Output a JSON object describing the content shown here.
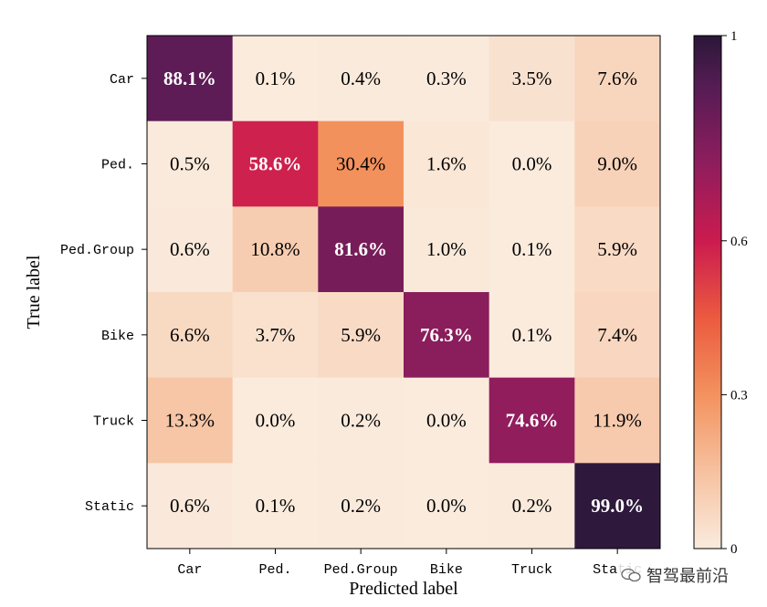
{
  "chart_data": {
    "type": "heatmap",
    "xlabel": "Predicted label",
    "ylabel": "True label",
    "row_labels": [
      "Car",
      "Ped.",
      "Ped.Group",
      "Bike",
      "Truck",
      "Static"
    ],
    "col_labels": [
      "Car",
      "Ped.",
      "Ped.Group",
      "Bike",
      "Truck",
      "Static"
    ],
    "values": [
      [
        0.881,
        0.001,
        0.004,
        0.003,
        0.035,
        0.076
      ],
      [
        0.005,
        0.586,
        0.304,
        0.016,
        0.0,
        0.09
      ],
      [
        0.006,
        0.108,
        0.816,
        0.01,
        0.001,
        0.059
      ],
      [
        0.066,
        0.037,
        0.059,
        0.763,
        0.001,
        0.074
      ],
      [
        0.133,
        0.0,
        0.002,
        0.0,
        0.746,
        0.119
      ],
      [
        0.006,
        0.001,
        0.002,
        0.0,
        0.002,
        0.99
      ]
    ],
    "cell_labels": [
      [
        "88.1%",
        "0.1%",
        "0.4%",
        "0.3%",
        "3.5%",
        "7.6%"
      ],
      [
        "0.5%",
        "58.6%",
        "30.4%",
        "1.6%",
        "0.0%",
        "9.0%"
      ],
      [
        "0.6%",
        "10.8%",
        "81.6%",
        "1.0%",
        "0.1%",
        "5.9%"
      ],
      [
        "6.6%",
        "3.7%",
        "5.9%",
        "76.3%",
        "0.1%",
        "7.4%"
      ],
      [
        "13.3%",
        "0.0%",
        "0.2%",
        "0.0%",
        "74.6%",
        "11.9%"
      ],
      [
        "0.6%",
        "0.1%",
        "0.2%",
        "0.0%",
        "0.2%",
        "99.0%"
      ]
    ],
    "colorbar": {
      "range": [
        0,
        1
      ],
      "ticks": [
        0,
        0.3,
        0.6,
        1
      ],
      "tick_labels": [
        "0",
        "0.3",
        "0.6",
        "1"
      ],
      "colormap": "rocket_r"
    }
  },
  "watermark": {
    "text": "智驾最前沿",
    "icon": "wechat-icon"
  }
}
